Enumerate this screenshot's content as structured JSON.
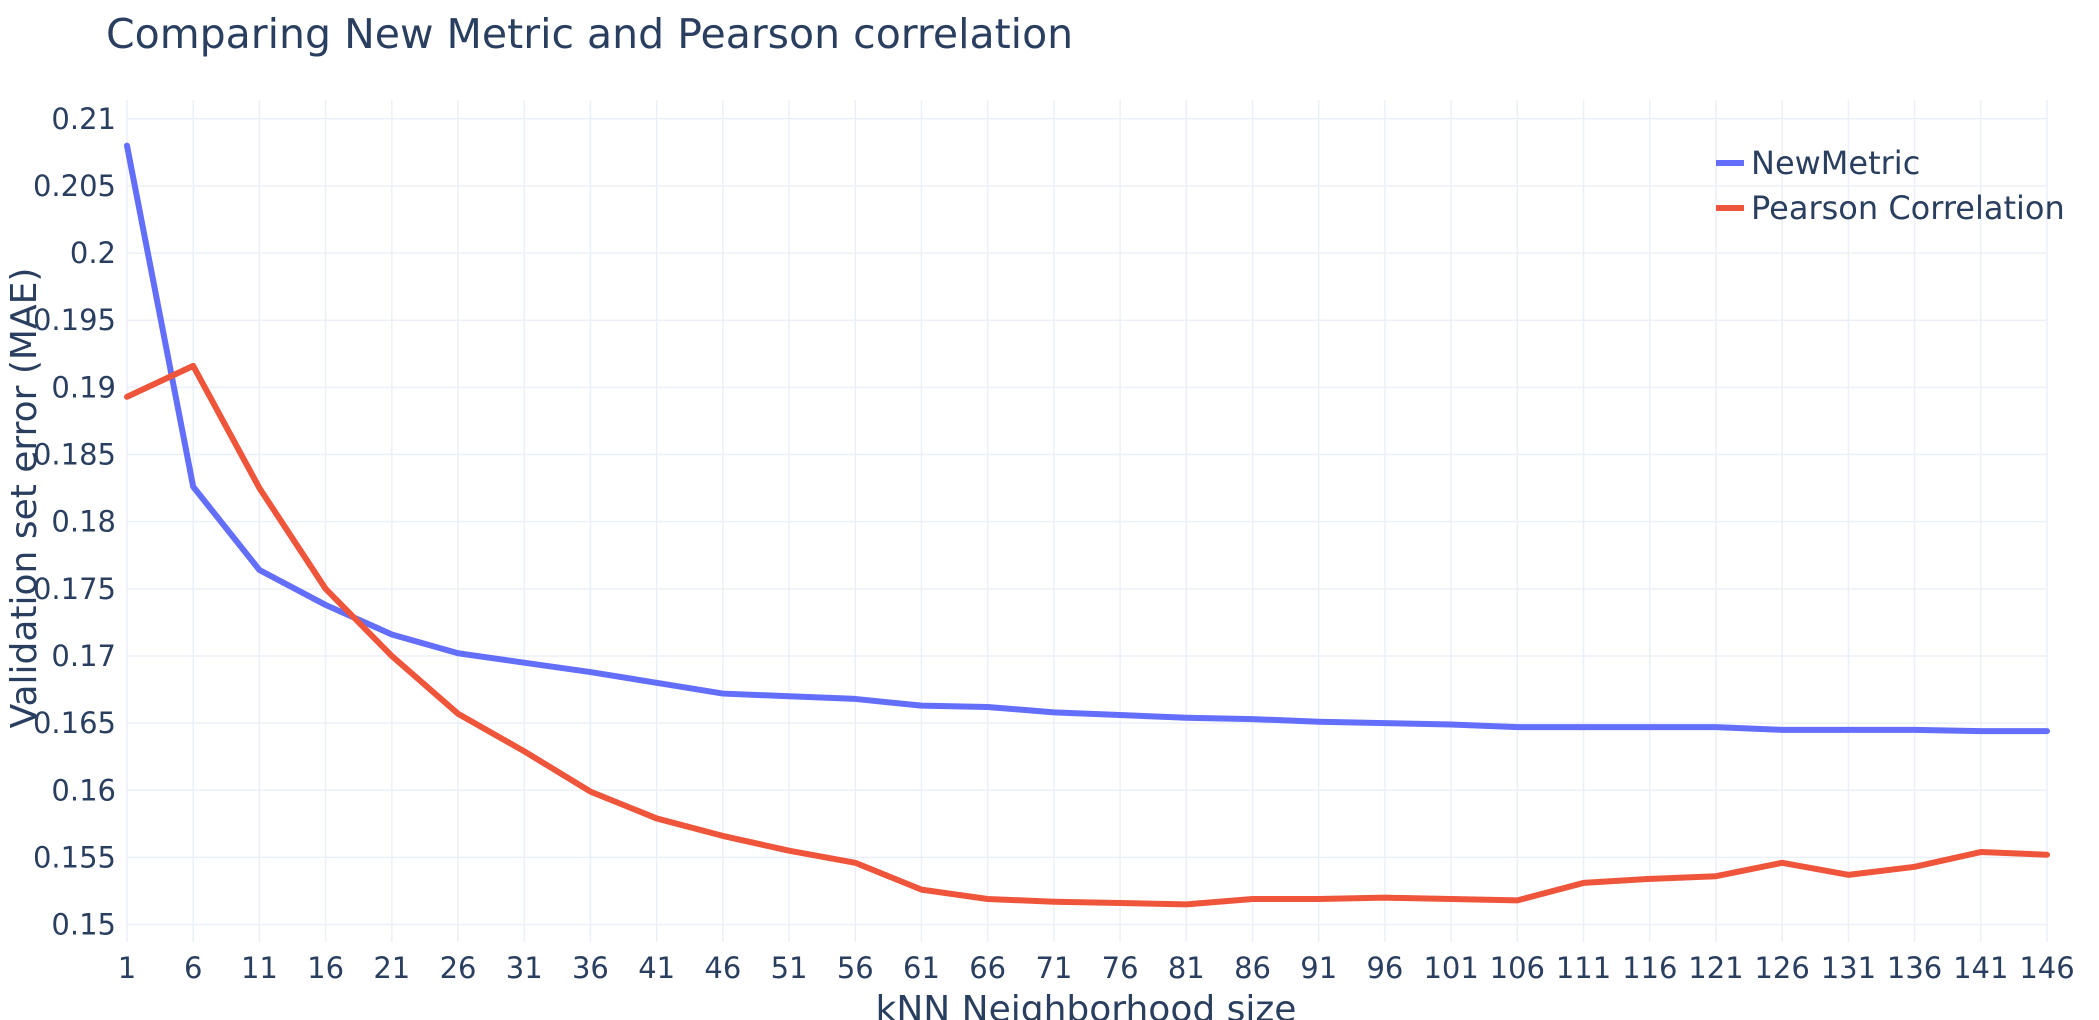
{
  "chart_data": {
    "type": "line",
    "title": "Comparing New Metric and Pearson correlation",
    "xlabel": "kNN Neighborhood size",
    "ylabel": "Validation set error (MAE)",
    "x": [
      1,
      6,
      11,
      16,
      21,
      26,
      31,
      36,
      41,
      46,
      51,
      56,
      61,
      66,
      71,
      76,
      81,
      86,
      91,
      96,
      101,
      106,
      111,
      116,
      121,
      126,
      131,
      136,
      141,
      146
    ],
    "x_tick_labels": [
      "1",
      "6",
      "11",
      "16",
      "21",
      "26",
      "31",
      "36",
      "41",
      "46",
      "51",
      "56",
      "61",
      "66",
      "71",
      "76",
      "81",
      "86",
      "91",
      "96",
      "101",
      "106",
      "111",
      "116",
      "121",
      "126",
      "131",
      "136",
      "141",
      "146"
    ],
    "y_ticks": [
      0.15,
      0.155,
      0.16,
      0.165,
      0.17,
      0.175,
      0.18,
      0.185,
      0.19,
      0.195,
      0.2,
      0.205,
      0.21
    ],
    "y_tick_labels": [
      "0.15",
      "0.155",
      "0.16",
      "0.165",
      "0.17",
      "0.175",
      "0.18",
      "0.185",
      "0.19",
      "0.195",
      "0.2",
      "0.205",
      "0.21"
    ],
    "xlim": [
      1,
      146
    ],
    "ylim": [
      0.1487,
      0.2114
    ],
    "grid": true,
    "legend_position": "top-right",
    "series": [
      {
        "name": "NewMetric",
        "color": "#636efa",
        "values": [
          0.208,
          0.1826,
          0.1764,
          0.1738,
          0.1716,
          0.1702,
          0.1695,
          0.1688,
          0.168,
          0.1672,
          0.167,
          0.1668,
          0.1663,
          0.1662,
          0.1658,
          0.1656,
          0.1654,
          0.1653,
          0.1651,
          0.165,
          0.1649,
          0.1647,
          0.1647,
          0.1647,
          0.1647,
          0.1645,
          0.1645,
          0.1645,
          0.1644,
          0.1644
        ]
      },
      {
        "name": "Pearson Correlation",
        "color": "#ef553b",
        "values": [
          0.1893,
          0.1916,
          0.1825,
          0.175,
          0.17,
          0.1657,
          0.1629,
          0.1599,
          0.1579,
          0.1566,
          0.1555,
          0.1546,
          0.1526,
          0.1519,
          0.1517,
          0.1516,
          0.1515,
          0.1519,
          0.1519,
          0.152,
          0.1519,
          0.1518,
          0.1531,
          0.1534,
          0.1536,
          0.1546,
          0.1537,
          0.1543,
          0.1554,
          0.1552
        ]
      }
    ]
  }
}
